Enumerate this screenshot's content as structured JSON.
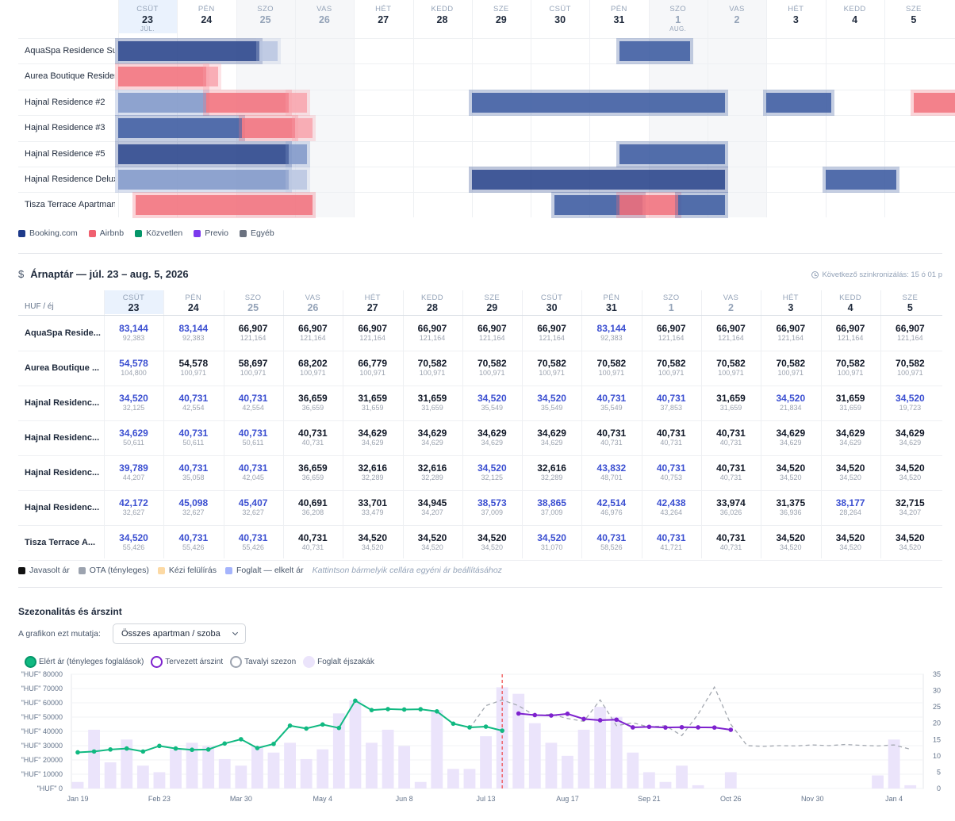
{
  "booking_calendar": {
    "days": [
      {
        "dow": "CSÜT",
        "day": "23",
        "month": "JÚL.",
        "weekend": false,
        "today": true
      },
      {
        "dow": "PÉN",
        "day": "24",
        "month": "",
        "weekend": false,
        "today": false
      },
      {
        "dow": "SZO",
        "day": "25",
        "month": "",
        "weekend": true,
        "today": false
      },
      {
        "dow": "VAS",
        "day": "26",
        "month": "",
        "weekend": true,
        "today": false
      },
      {
        "dow": "HÉT",
        "day": "27",
        "month": "",
        "weekend": false,
        "today": false
      },
      {
        "dow": "KEDD",
        "day": "28",
        "month": "",
        "weekend": false,
        "today": false
      },
      {
        "dow": "SZE",
        "day": "29",
        "month": "",
        "weekend": false,
        "today": false
      },
      {
        "dow": "CSÜT",
        "day": "30",
        "month": "",
        "weekend": false,
        "today": false
      },
      {
        "dow": "PÉN",
        "day": "31",
        "month": "",
        "weekend": false,
        "today": false
      },
      {
        "dow": "SZO",
        "day": "1",
        "month": "AUG.",
        "weekend": true,
        "today": false
      },
      {
        "dow": "VAS",
        "day": "2",
        "month": "",
        "weekend": true,
        "today": false
      },
      {
        "dow": "HÉT",
        "day": "3",
        "month": "",
        "weekend": false,
        "today": false
      },
      {
        "dow": "KEDD",
        "day": "4",
        "month": "",
        "weekend": false,
        "today": false
      },
      {
        "dow": "SZE",
        "day": "5",
        "month": "",
        "weekend": false,
        "today": false
      }
    ],
    "properties": [
      "AquaSpa Residence Superior",
      "Aurea Boutique Residence",
      "Hajnal Residence #2",
      "Hajnal Residence #3",
      "Hajnal Residence #5",
      "Hajnal Residence Deluxe",
      "Tisza Terrace Apartman"
    ],
    "legend": [
      {
        "label": "Booking.com",
        "color": "#1e3a8a"
      },
      {
        "label": "Airbnb",
        "color": "#f0606f"
      },
      {
        "label": "Közvetlen",
        "color": "#059669"
      },
      {
        "label": "Previo",
        "color": "#7c3aed"
      },
      {
        "label": "Egyéb",
        "color": "#6b7280"
      }
    ]
  },
  "price_calendar": {
    "title": "Árnaptár — júl. 23 – aug. 5, 2026",
    "sync_text": "Következő szinkronizálás: 15 ó 01 p",
    "unit": "HUF / éj",
    "days": [
      {
        "dow": "CSÜT",
        "day": "23",
        "weekend": false
      },
      {
        "dow": "PÉN",
        "day": "24",
        "weekend": false
      },
      {
        "dow": "SZO",
        "day": "25",
        "weekend": true
      },
      {
        "dow": "VAS",
        "day": "26",
        "weekend": true
      },
      {
        "dow": "HÉT",
        "day": "27",
        "weekend": false
      },
      {
        "dow": "KEDD",
        "day": "28",
        "weekend": false
      },
      {
        "dow": "SZE",
        "day": "29",
        "weekend": false
      },
      {
        "dow": "CSÜT",
        "day": "30",
        "weekend": false
      },
      {
        "dow": "PÉN",
        "day": "31",
        "weekend": false
      },
      {
        "dow": "SZO",
        "day": "1",
        "weekend": true
      },
      {
        "dow": "VAS",
        "day": "2",
        "weekend": true
      },
      {
        "dow": "HÉT",
        "day": "3",
        "weekend": false
      },
      {
        "dow": "KEDD",
        "day": "4",
        "weekend": false
      },
      {
        "dow": "SZE",
        "day": "5",
        "weekend": false
      }
    ],
    "rows": [
      {
        "name": "AquaSpa Reside...",
        "cells": [
          [
            "83,144",
            "92,383",
            true
          ],
          [
            "83,144",
            "92,383",
            true
          ],
          [
            "66,907",
            "121,164",
            false
          ],
          [
            "66,907",
            "121,164",
            false
          ],
          [
            "66,907",
            "121,164",
            false
          ],
          [
            "66,907",
            "121,164",
            false
          ],
          [
            "66,907",
            "121,164",
            false
          ],
          [
            "66,907",
            "121,164",
            false
          ],
          [
            "83,144",
            "92,383",
            true
          ],
          [
            "66,907",
            "121,164",
            false
          ],
          [
            "66,907",
            "121,164",
            false
          ],
          [
            "66,907",
            "121,164",
            false
          ],
          [
            "66,907",
            "121,164",
            false
          ],
          [
            "66,907",
            "121,164",
            false
          ]
        ]
      },
      {
        "name": "Aurea Boutique ...",
        "cells": [
          [
            "54,578",
            "104,800",
            true
          ],
          [
            "54,578",
            "100,971",
            false
          ],
          [
            "58,697",
            "100,971",
            false
          ],
          [
            "68,202",
            "100,971",
            false
          ],
          [
            "66,779",
            "100,971",
            false
          ],
          [
            "70,582",
            "100,971",
            false
          ],
          [
            "70,582",
            "100,971",
            false
          ],
          [
            "70,582",
            "100,971",
            false
          ],
          [
            "70,582",
            "100,971",
            false
          ],
          [
            "70,582",
            "100,971",
            false
          ],
          [
            "70,582",
            "100,971",
            false
          ],
          [
            "70,582",
            "100,971",
            false
          ],
          [
            "70,582",
            "100,971",
            false
          ],
          [
            "70,582",
            "100,971",
            false
          ]
        ]
      },
      {
        "name": "Hajnal Residenc...",
        "cells": [
          [
            "34,520",
            "32,125",
            true
          ],
          [
            "40,731",
            "42,554",
            true
          ],
          [
            "40,731",
            "42,554",
            true
          ],
          [
            "36,659",
            "36,659",
            false
          ],
          [
            "31,659",
            "31,659",
            false
          ],
          [
            "31,659",
            "31,659",
            false
          ],
          [
            "34,520",
            "35,549",
            true
          ],
          [
            "34,520",
            "35,549",
            true
          ],
          [
            "40,731",
            "35,549",
            true
          ],
          [
            "40,731",
            "37,853",
            true
          ],
          [
            "31,659",
            "31,659",
            false
          ],
          [
            "34,520",
            "21,834",
            true
          ],
          [
            "31,659",
            "31,659",
            false
          ],
          [
            "34,520",
            "19,723",
            true
          ]
        ]
      },
      {
        "name": "Hajnal Residenc...",
        "cells": [
          [
            "34,629",
            "50,611",
            true
          ],
          [
            "40,731",
            "50,611",
            true
          ],
          [
            "40,731",
            "50,611",
            true
          ],
          [
            "40,731",
            "40,731",
            false
          ],
          [
            "34,629",
            "34,629",
            false
          ],
          [
            "34,629",
            "34,629",
            false
          ],
          [
            "34,629",
            "34,629",
            false
          ],
          [
            "34,629",
            "34,629",
            false
          ],
          [
            "40,731",
            "40,731",
            false
          ],
          [
            "40,731",
            "40,731",
            false
          ],
          [
            "40,731",
            "40,731",
            false
          ],
          [
            "34,629",
            "34,629",
            false
          ],
          [
            "34,629",
            "34,629",
            false
          ],
          [
            "34,629",
            "34,629",
            false
          ]
        ]
      },
      {
        "name": "Hajnal Residenc...",
        "cells": [
          [
            "39,789",
            "44,207",
            true
          ],
          [
            "40,731",
            "35,058",
            true
          ],
          [
            "40,731",
            "42,045",
            true
          ],
          [
            "36,659",
            "36,659",
            false
          ],
          [
            "32,616",
            "32,289",
            false
          ],
          [
            "32,616",
            "32,289",
            false
          ],
          [
            "34,520",
            "32,125",
            true
          ],
          [
            "32,616",
            "32,289",
            false
          ],
          [
            "43,832",
            "48,701",
            true
          ],
          [
            "40,731",
            "40,753",
            true
          ],
          [
            "40,731",
            "40,731",
            false
          ],
          [
            "34,520",
            "34,520",
            false
          ],
          [
            "34,520",
            "34,520",
            false
          ],
          [
            "34,520",
            "34,520",
            false
          ]
        ]
      },
      {
        "name": "Hajnal Residenc...",
        "cells": [
          [
            "42,172",
            "32,627",
            true
          ],
          [
            "45,098",
            "32,627",
            true
          ],
          [
            "45,407",
            "32,627",
            true
          ],
          [
            "40,691",
            "36,208",
            false
          ],
          [
            "33,701",
            "33,479",
            false
          ],
          [
            "34,945",
            "34,207",
            false
          ],
          [
            "38,573",
            "37,009",
            true
          ],
          [
            "38,865",
            "37,009",
            true
          ],
          [
            "42,514",
            "46,976",
            true
          ],
          [
            "42,438",
            "43,264",
            true
          ],
          [
            "33,974",
            "36,026",
            false
          ],
          [
            "31,375",
            "36,936",
            false
          ],
          [
            "38,177",
            "28,264",
            true
          ],
          [
            "32,715",
            "34,207",
            false
          ]
        ]
      },
      {
        "name": "Tisza Terrace A...",
        "cells": [
          [
            "34,520",
            "55,426",
            true
          ],
          [
            "40,731",
            "55,426",
            true
          ],
          [
            "40,731",
            "55,426",
            true
          ],
          [
            "40,731",
            "40,731",
            false
          ],
          [
            "34,520",
            "34,520",
            false
          ],
          [
            "34,520",
            "34,520",
            false
          ],
          [
            "34,520",
            "34,520",
            false
          ],
          [
            "34,520",
            "31,070",
            true
          ],
          [
            "40,731",
            "58,526",
            true
          ],
          [
            "40,731",
            "41,721",
            true
          ],
          [
            "40,731",
            "40,731",
            false
          ],
          [
            "34,520",
            "34,520",
            false
          ],
          [
            "34,520",
            "34,520",
            false
          ],
          [
            "34,520",
            "34,520",
            false
          ]
        ]
      }
    ],
    "legend": [
      {
        "label": "Javasolt ár",
        "color": "#111111"
      },
      {
        "label": "OTA (tényleges)",
        "color": "#9ca3af"
      },
      {
        "label": "Kézi felülírás",
        "color": "#fcd9a4"
      },
      {
        "label": "Foglalt — elkelt ár",
        "color": "#a5b4fc"
      }
    ],
    "hint": "Kattintson bármelyik cellára egyéni ár beállításához"
  },
  "seasonality": {
    "title": "Szezonalitás és árszint",
    "show_label": "A grafikon ezt mutatja:",
    "select_value": "Összes apartman / szoba",
    "legend": [
      {
        "label": "Elért ár (tényleges foglalások)",
        "color": "#10b981",
        "style": "filled"
      },
      {
        "label": "Tervezett árszint",
        "color": "#7e22ce",
        "style": "ring"
      },
      {
        "label": "Tavalyi szezon",
        "color": "#9ca3af",
        "style": "ring"
      },
      {
        "label": "Foglalt éjszakák",
        "color": "#ebe4fb",
        "style": "filled"
      }
    ]
  },
  "chart_data": {
    "type": "line",
    "x_ticks": [
      "Jan 19",
      "Feb 23",
      "Mar 30",
      "May 4",
      "Jun 8",
      "Jul 13",
      "Aug 17",
      "Sep 21",
      "Oct 26",
      "Nov 30",
      "Jan 4"
    ],
    "y_left_ticks": [
      "\"HUF\" 0",
      "\"HUF\" 10000",
      "\"HUF\" 20000",
      "\"HUF\" 30000",
      "\"HUF\" 40000",
      "\"HUF\" 50000",
      "\"HUF\" 60000",
      "\"HUF\" 70000",
      "\"HUF\" 80000"
    ],
    "y_right_ticks": [
      "0",
      "5",
      "10",
      "15",
      "20",
      "25",
      "30",
      "35"
    ],
    "ylim_left": [
      0,
      80000
    ],
    "ylim_right": [
      0,
      35
    ],
    "x_range_weeks": [
      0,
      51.5
    ],
    "today_week": 26,
    "series": [
      {
        "name": "Foglalt éjszakák",
        "axis": "right",
        "kind": "bar",
        "x": [
          0,
          1,
          2,
          3,
          4,
          5,
          6,
          7,
          8,
          9,
          10,
          11,
          12,
          13,
          14,
          15,
          16,
          17,
          18,
          19,
          20,
          21,
          22,
          23,
          24,
          25,
          26,
          27,
          28,
          29,
          30,
          31,
          32,
          33,
          34,
          35,
          36,
          37,
          38,
          39,
          40,
          41,
          42,
          43,
          44,
          45,
          46,
          47,
          48,
          49,
          50,
          51
        ],
        "values": [
          2,
          18,
          8,
          15,
          7,
          5,
          12,
          14,
          13,
          9,
          7,
          13,
          11,
          14,
          9,
          12,
          23,
          27,
          14,
          18,
          13,
          2,
          24,
          6,
          6,
          16,
          31,
          29,
          20,
          14,
          10,
          18,
          25,
          22,
          11,
          5,
          2,
          7,
          1,
          0,
          5,
          0,
          0,
          0,
          0,
          0,
          0,
          0,
          0,
          4,
          15,
          1
        ]
      },
      {
        "name": "Elért ár (tényleges foglalások)",
        "axis": "left",
        "kind": "line",
        "x": [
          0,
          1,
          2,
          3,
          4,
          5,
          6,
          7,
          8,
          9,
          10,
          11,
          12,
          13,
          14,
          15,
          16,
          17,
          18,
          19,
          20,
          21,
          22,
          23,
          24,
          25,
          26
        ],
        "values": [
          25300,
          25900,
          27300,
          28000,
          25900,
          29800,
          28000,
          27100,
          27300,
          31500,
          34500,
          28300,
          31200,
          44000,
          42000,
          44800,
          42400,
          61500,
          54900,
          55600,
          55300,
          55500,
          54000,
          45400,
          42800,
          43300,
          40500
        ]
      },
      {
        "name": "Tervezett árszint",
        "axis": "left",
        "kind": "line",
        "x": [
          27,
          28,
          29,
          30,
          31,
          32,
          33,
          34,
          35,
          36,
          37,
          38,
          39,
          40
        ],
        "values": [
          52500,
          51400,
          51100,
          52300,
          48700,
          47800,
          48200,
          42800,
          43200,
          42700,
          42900,
          42800,
          42700,
          41100
        ]
      },
      {
        "name": "Tavalyi szezon",
        "axis": "left",
        "kind": "dashed",
        "x": [
          24,
          25,
          26,
          27,
          28,
          29,
          30,
          31,
          32,
          33,
          34,
          35,
          36,
          37,
          38,
          39,
          40,
          41,
          42,
          43,
          44,
          45,
          46,
          47,
          48,
          49,
          50,
          51
        ],
        "values": [
          42000,
          58000,
          62000,
          58000,
          51000,
          52000,
          49000,
          47000,
          62000,
          44000,
          46000,
          43000,
          44000,
          37000,
          52000,
          71000,
          45000,
          30000,
          29500,
          30000,
          29800,
          30500,
          30000,
          30800,
          30200,
          29800,
          30500,
          27500
        ]
      }
    ]
  }
}
